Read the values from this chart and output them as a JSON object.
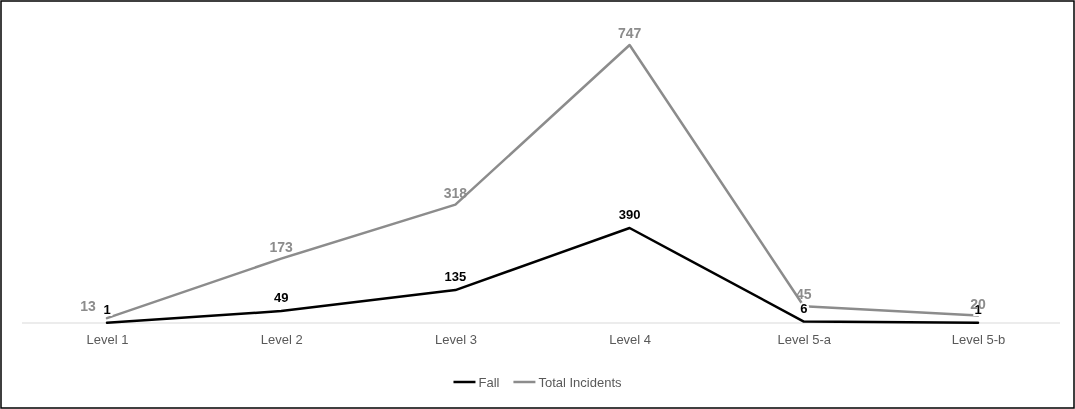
{
  "chart_data": {
    "type": "line",
    "categories": [
      "Level 1",
      "Level 2",
      "Level 3",
      "Level 4",
      "Level 5-a",
      "Level 5-b"
    ],
    "series": [
      {
        "name": "Fall",
        "color": "#000000",
        "values": [
          1,
          49,
          135,
          390,
          6,
          1
        ],
        "axis": "y2"
      },
      {
        "name": "Total Incidents",
        "color": "#8c8c8c",
        "values": [
          13,
          173,
          318,
          747,
          45,
          20
        ]
      }
    ],
    "tick_labels": "x",
    "data_labels": true,
    "legend": "bottom",
    "grid": false,
    "line_style": "solid"
  }
}
